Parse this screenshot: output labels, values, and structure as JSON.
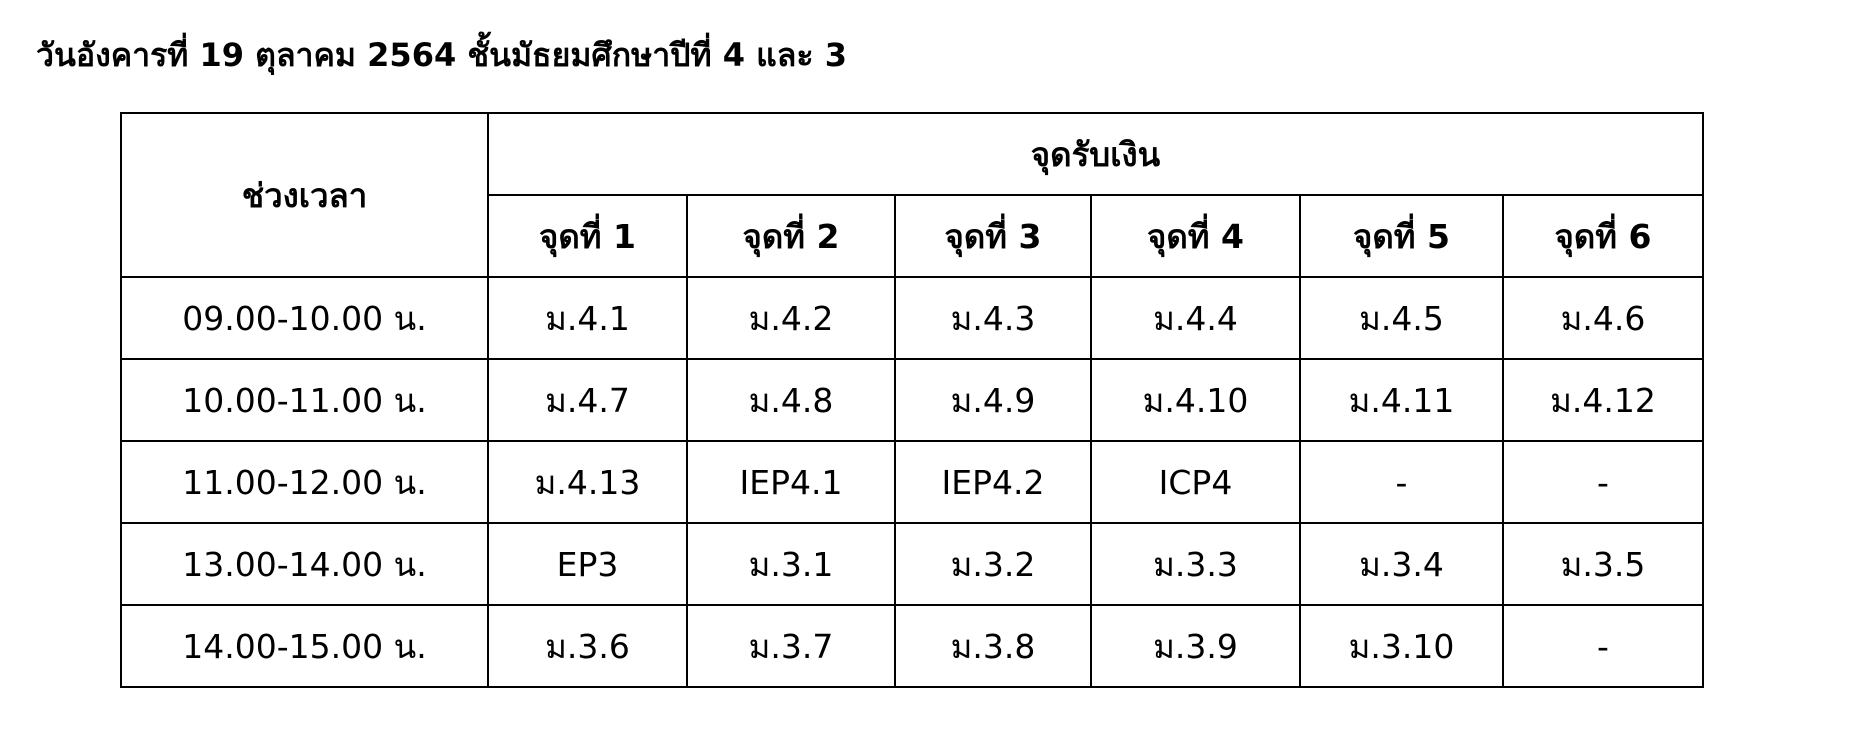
{
  "title": "วันอังคารที่ 19 ตุลาคม 2564 ชั้นมัธยมศึกษาปีที่ 4 และ 3",
  "table": {
    "time_header": "ช่วงเวลา",
    "group_header": "จุดรับเงิน",
    "points": [
      "จุดที่ 1",
      "จุดที่ 2",
      "จุดที่ 3",
      "จุดที่ 4",
      "จุดที่ 5",
      "จุดที่ 6"
    ],
    "rows": [
      {
        "time": "09.00-10.00 น.",
        "cells": [
          "ม.4.1",
          "ม.4.2",
          "ม.4.3",
          "ม.4.4",
          "ม.4.5",
          "ม.4.6"
        ]
      },
      {
        "time": "10.00-11.00 น.",
        "cells": [
          "ม.4.7",
          "ม.4.8",
          "ม.4.9",
          "ม.4.10",
          "ม.4.11",
          "ม.4.12"
        ]
      },
      {
        "time": "11.00-12.00 น.",
        "cells": [
          "ม.4.13",
          "IEP4.1",
          "IEP4.2",
          "ICP4",
          "-",
          "-"
        ]
      },
      {
        "time": "13.00-14.00 น.",
        "cells": [
          "EP3",
          "ม.3.1",
          "ม.3.2",
          "ม.3.3",
          "ม.3.4",
          "ม.3.5"
        ]
      },
      {
        "time": "14.00-15.00 น.",
        "cells": [
          "ม.3.6",
          "ม.3.7",
          "ม.3.8",
          "ม.3.9",
          "ม.3.10",
          "-"
        ]
      }
    ]
  }
}
